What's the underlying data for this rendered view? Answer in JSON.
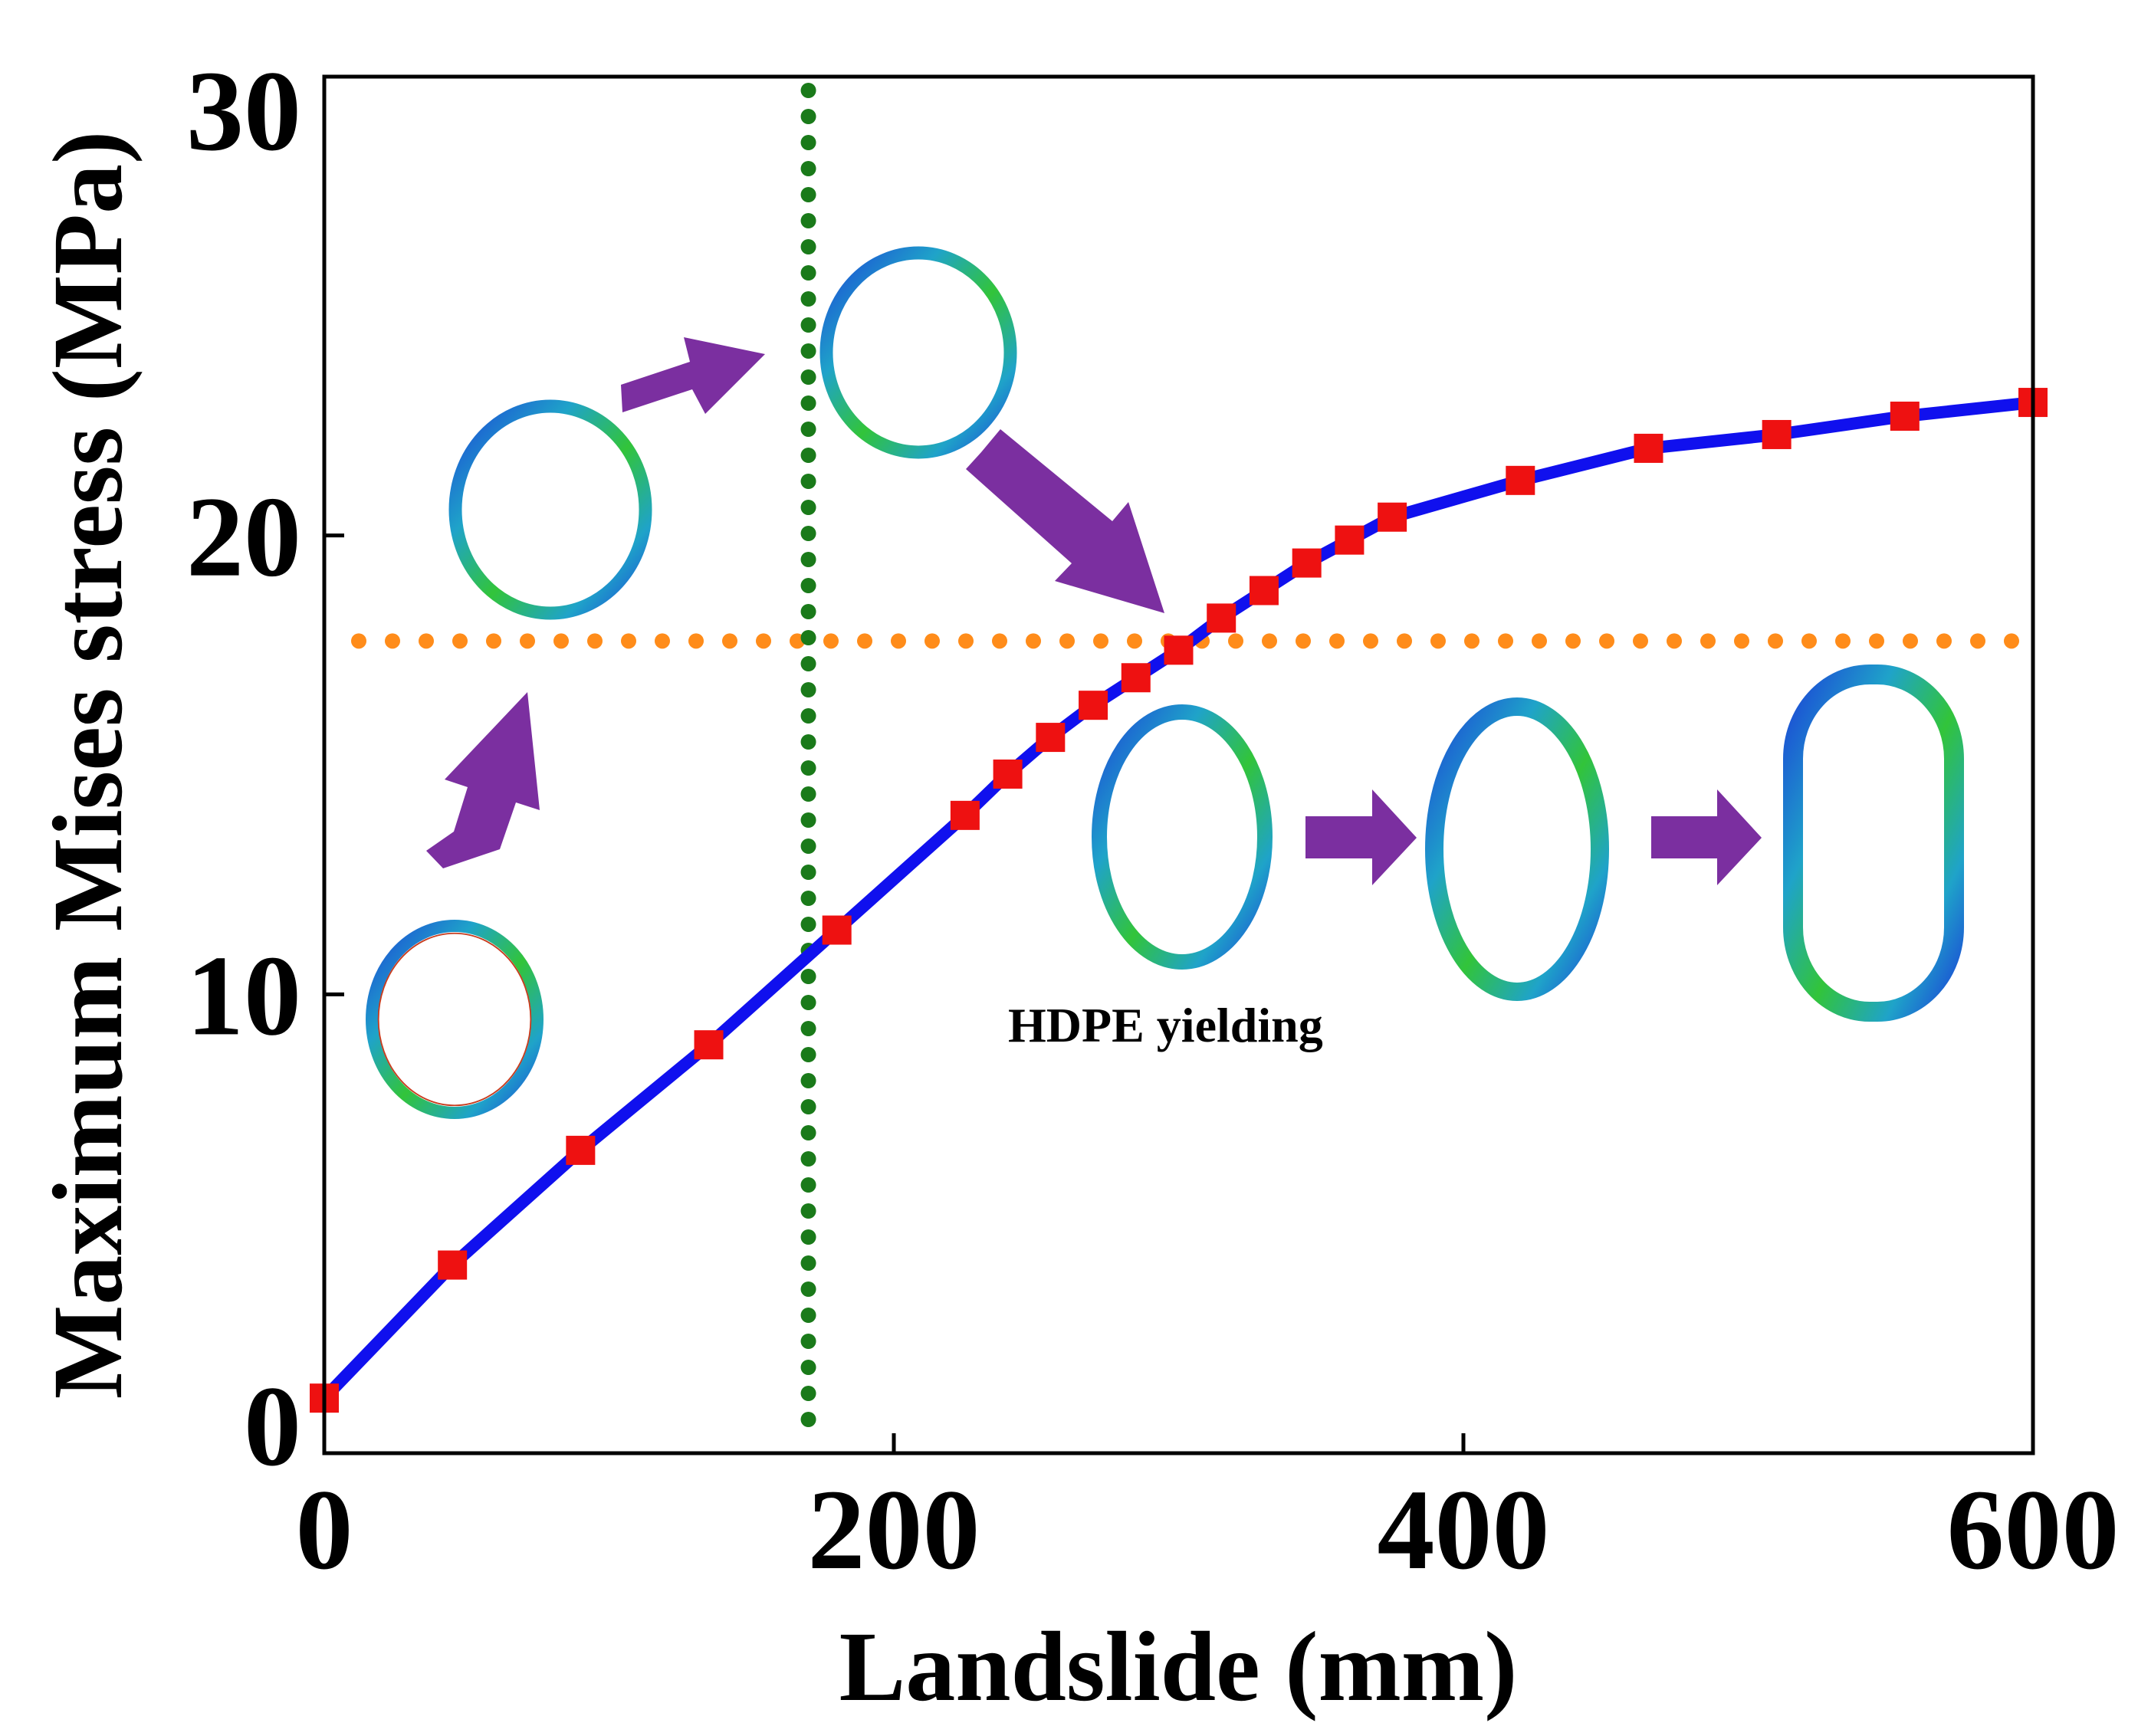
{
  "chart_data": {
    "type": "line",
    "xlabel": "Landslide (mm)",
    "ylabel": "Maximum Mises stress (MPa)",
    "xlim": [
      0,
      600
    ],
    "ylim": [
      0,
      30
    ],
    "x_ticks": [
      0,
      200,
      400,
      600
    ],
    "y_ticks": [
      0,
      10,
      20,
      30
    ],
    "grid": false,
    "series": [
      {
        "name": "Maximum Mises stress",
        "color": "#1010ee",
        "marker_color": "#ee1111",
        "x": [
          0,
          45,
          90,
          135,
          180,
          225,
          240,
          255,
          270,
          285,
          300,
          315,
          330,
          345,
          360,
          375,
          420,
          465,
          510,
          555,
          600
        ],
        "y": [
          1.2,
          4.1,
          6.6,
          8.9,
          11.4,
          13.9,
          14.8,
          15.6,
          16.3,
          16.9,
          17.5,
          18.2,
          18.8,
          19.4,
          19.9,
          20.4,
          21.2,
          21.9,
          22.2,
          22.6,
          22.9
        ]
      }
    ],
    "reference_lines": [
      {
        "orientation": "horizontal",
        "value": 17.7,
        "color": "#ff8c1a",
        "style": "dotted"
      },
      {
        "orientation": "vertical",
        "value": 170,
        "color": "#1a7a1a",
        "style": "dotted"
      }
    ],
    "annotations": [
      {
        "text": "HDPE yielding"
      }
    ],
    "insets": [
      {
        "name": "pipe-cross-section-1",
        "depicts": "ring-shaped pipe cross-section stress contour"
      },
      {
        "name": "pipe-cross-section-2",
        "depicts": "ring-shaped pipe cross-section stress contour"
      },
      {
        "name": "pipe-cross-section-3",
        "depicts": "ring-shaped pipe cross-section stress contour"
      },
      {
        "name": "pipe-cross-section-4",
        "depicts": "ovalized pipe cross-section stress contour"
      },
      {
        "name": "pipe-cross-section-5",
        "depicts": "ovalized pipe cross-section stress contour"
      },
      {
        "name": "pipe-cross-section-6",
        "depicts": "strongly ovalized pipe cross-section stress contour"
      }
    ]
  }
}
